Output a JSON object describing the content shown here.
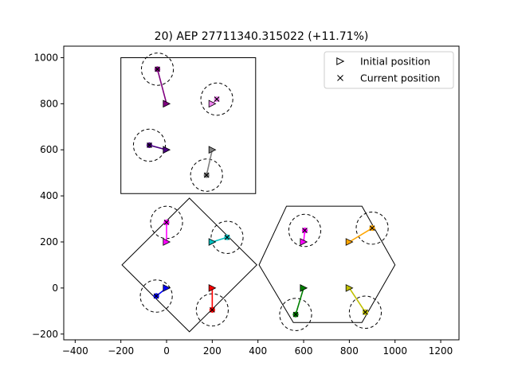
{
  "chart_data": {
    "type": "scatter",
    "title": "20) AEP 27711340.315022  (+11.71%)",
    "xlabel": "",
    "ylabel": "",
    "xlim": [
      -450,
      1280
    ],
    "ylim": [
      -225,
      1050
    ],
    "xticks": [
      -400,
      -200,
      0,
      200,
      400,
      600,
      800,
      1000,
      1200
    ],
    "yticks": [
      -200,
      0,
      200,
      400,
      600,
      800,
      1000
    ],
    "grid": false,
    "legend": {
      "placement": "top-right",
      "entries": [
        {
          "label": "Initial position",
          "marker": "triangle-right"
        },
        {
          "label": "Current position",
          "marker": "x"
        }
      ]
    },
    "boundaries": [
      {
        "shape": "square",
        "points": [
          [
            -200,
            410
          ],
          [
            390,
            410
          ],
          [
            390,
            1000
          ],
          [
            -200,
            1000
          ]
        ]
      },
      {
        "shape": "diamond",
        "points": [
          [
            100,
            390
          ],
          [
            395,
            100
          ],
          [
            100,
            -190
          ],
          [
            -195,
            100
          ]
        ]
      },
      {
        "shape": "hexagon",
        "points": [
          [
            525,
            355
          ],
          [
            855,
            355
          ],
          [
            1000,
            100
          ],
          [
            855,
            -150
          ],
          [
            555,
            -150
          ],
          [
            405,
            100
          ]
        ]
      }
    ],
    "constraint_radius": 70,
    "turbines": [
      {
        "color": "#800080",
        "initial": [
          0,
          800
        ],
        "current": [
          -40,
          950
        ]
      },
      {
        "color": "#ee82ee",
        "initial": [
          200,
          800
        ],
        "current": [
          220,
          820
        ]
      },
      {
        "color": "#4b0082",
        "initial": [
          0,
          600
        ],
        "current": [
          -75,
          620
        ]
      },
      {
        "color": "#808080",
        "initial": [
          200,
          600
        ],
        "current": [
          175,
          490
        ]
      },
      {
        "color": "#ff00ff",
        "initial": [
          0,
          200
        ],
        "current": [
          0,
          285
        ]
      },
      {
        "color": "#00bfbf",
        "initial": [
          200,
          200
        ],
        "current": [
          265,
          220
        ]
      },
      {
        "color": "#0000ff",
        "initial": [
          0,
          0
        ],
        "current": [
          -45,
          -35
        ]
      },
      {
        "color": "#ff0000",
        "initial": [
          200,
          0
        ],
        "current": [
          200,
          -95
        ]
      },
      {
        "color": "#ff00ff",
        "initial": [
          600,
          200
        ],
        "current": [
          605,
          250
        ]
      },
      {
        "color": "#ffa500",
        "initial": [
          800,
          200
        ],
        "current": [
          900,
          260
        ]
      },
      {
        "color": "#008000",
        "initial": [
          600,
          0
        ],
        "current": [
          565,
          -115
        ]
      },
      {
        "color": "#bfbf00",
        "initial": [
          800,
          0
        ],
        "current": [
          870,
          -105
        ]
      }
    ]
  }
}
